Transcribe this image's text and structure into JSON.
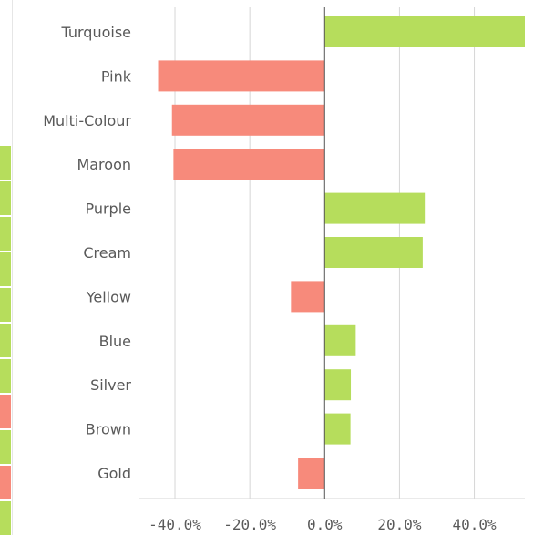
{
  "left_panel": {
    "cell_colors": [
      "#ffffff",
      "#ffffff",
      "#ffffff",
      "#ffffff",
      "#b6dd5c",
      "#b6dd5c",
      "#b6dd5c",
      "#b6dd5c",
      "#b6dd5c",
      "#b6dd5c",
      "#b6dd5c",
      "#f78a7b",
      "#b6dd5c",
      "#f78a7b",
      "#b6dd5c"
    ]
  },
  "chart_data": {
    "type": "bar",
    "orientation": "horizontal",
    "title": "",
    "xlabel": "",
    "ylabel": "",
    "categories": [
      "Turquoise",
      "Pink",
      "Multi-Colour",
      "Maroon",
      "Purple",
      "Cream",
      "Yellow",
      "Blue",
      "Silver",
      "Brown",
      "Gold"
    ],
    "values": [
      53.5,
      -44.5,
      -40.8,
      -40.4,
      27.0,
      26.2,
      -9.0,
      8.3,
      7.0,
      6.9,
      -7.1
    ],
    "value_unit": "%",
    "xlim": [
      -49.5,
      53.5
    ],
    "xticks": [
      -40,
      -20,
      0,
      20,
      40
    ],
    "xtick_labels": [
      "-40.0%",
      "-20.0%",
      "0.0%",
      "20.0%",
      "40.0%"
    ],
    "grid": true,
    "colors": {
      "positive": "#b6dd5c",
      "negative": "#f78a7b",
      "grid": "#d6d6d6",
      "zero_line": "#555555",
      "text": "#595959"
    }
  }
}
